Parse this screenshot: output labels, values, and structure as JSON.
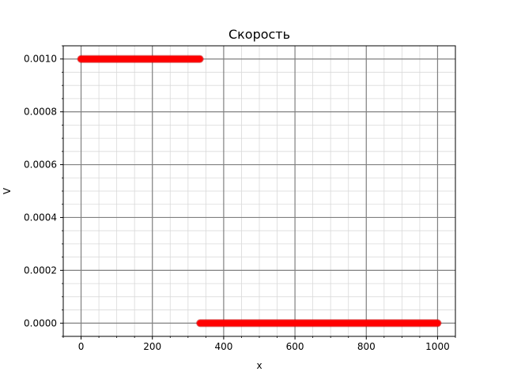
{
  "chart_data": {
    "type": "scatter",
    "title": "Скорость",
    "xlabel": "x",
    "ylabel": "V",
    "xlim": [
      -50,
      1050
    ],
    "ylim": [
      -5e-05,
      0.00105
    ],
    "xticks": [
      0,
      200,
      400,
      600,
      800,
      1000
    ],
    "yticks": [
      0.0,
      0.0002,
      0.0004,
      0.0006,
      0.0008,
      0.001
    ],
    "xtick_labels": [
      "0",
      "200",
      "400",
      "600",
      "800",
      "1000"
    ],
    "ytick_labels": [
      "0.0000",
      "0.0002",
      "0.0004",
      "0.0006",
      "0.0008",
      "0.0010"
    ],
    "x_minor_step": 50,
    "y_minor_step": 5e-05,
    "grid": true,
    "legend": "none",
    "series": [
      {
        "color": "#ff0000",
        "marker": "circle",
        "segments": [
          {
            "x_start": 0,
            "x_end": 333,
            "y": 0.001
          },
          {
            "x_start": 334,
            "x_end": 1000,
            "y": 0.0
          }
        ]
      }
    ]
  }
}
